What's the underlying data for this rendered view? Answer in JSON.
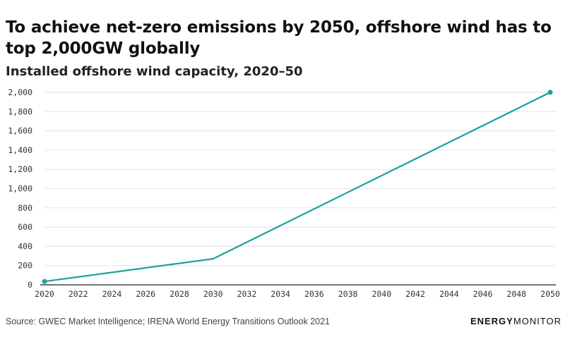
{
  "header": {
    "title": "To achieve net-zero emissions by 2050, offshore wind has to top 2,000GW globally",
    "subtitle": "Installed offshore wind capacity, 2020–50"
  },
  "footer": {
    "source": "Source: GWEC Market Intelligence; IRENA World Energy Transitions Outlook 2021",
    "brand_bold": "ENERGY",
    "brand_light": "MONITOR"
  },
  "colors": {
    "line": "#1aa39a",
    "grid": "#e3e3e3",
    "axis": "#222222"
  },
  "chart_data": {
    "type": "line",
    "title": "To achieve net-zero emissions by 2050, offshore wind has to top 2,000GW globally",
    "subtitle": "Installed offshore wind capacity, 2020–50",
    "xlabel": "",
    "ylabel": "",
    "xlim": [
      2020,
      2050
    ],
    "ylim": [
      0,
      2000
    ],
    "grid": true,
    "legend": "none",
    "x_ticks": [
      2020,
      2022,
      2024,
      2026,
      2028,
      2030,
      2032,
      2034,
      2036,
      2038,
      2040,
      2042,
      2044,
      2046,
      2048,
      2050
    ],
    "y_ticks": [
      0,
      200,
      400,
      600,
      800,
      1000,
      1200,
      1400,
      1600,
      1800,
      2000
    ],
    "y_tick_labels": [
      "0",
      "200",
      "400",
      "600",
      "800",
      "1,000",
      "1,200",
      "1,400",
      "1,600",
      "1,800",
      "2,000"
    ],
    "series": [
      {
        "x": [
          2020,
          2030,
          2050
        ],
        "values": [
          35,
          270,
          2000
        ],
        "markers_at": [
          2020,
          2050
        ]
      }
    ]
  }
}
